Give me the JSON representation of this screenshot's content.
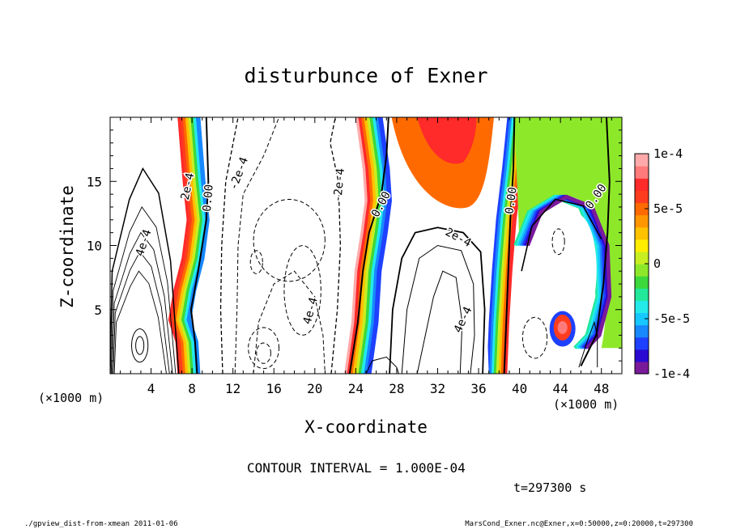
{
  "chart_data": {
    "type": "heatmap",
    "title": "disturbunce of Exner",
    "xlabel": "X-coordinate",
    "ylabel": "Z-coordinate",
    "x_unit_left": "(×1000 m)",
    "x_unit_right": "(×1000 m)",
    "xlim": [
      0,
      50
    ],
    "ylim": [
      0,
      20
    ],
    "x_ticks": [
      4,
      8,
      12,
      16,
      20,
      24,
      28,
      32,
      36,
      40,
      44,
      48
    ],
    "y_ticks": [
      5,
      10,
      15
    ],
    "colorbar": {
      "range": [
        -0.0001,
        0.0001
      ],
      "tick_values": [
        0.0001,
        5e-05,
        0,
        -5e-05,
        -0.0001
      ],
      "tick_labels": [
        "1e-4",
        "5e-5",
        "0",
        "-5e-5",
        "-1e-4"
      ],
      "colors": [
        "#7a1a9a",
        "#2a0ad2",
        "#1e40ff",
        "#1888ff",
        "#16c8ff",
        "#24eaea",
        "#22e89a",
        "#3cd83c",
        "#8ee82a",
        "#c8ee22",
        "#ffee00",
        "#ffc200",
        "#ff9600",
        "#ff6a00",
        "#ff3c1e",
        "#ff2a2a",
        "#ff7a7a",
        "#ffaaaa"
      ]
    },
    "contour_interval": "CONTOUR INTERVAL = 1.000E-04",
    "contour_labels": [
      {
        "text": "2e-4",
        "x": 7.6,
        "z": 14.6,
        "angle": 78
      },
      {
        "text": "0.00",
        "x": 9.6,
        "z": 13.7,
        "angle": 85
      },
      {
        "text": "-2e-4",
        "x": 12.6,
        "z": 15.6,
        "angle": 70
      },
      {
        "text": "4e-4",
        "x": 3.3,
        "z": 10.2,
        "angle": 72
      },
      {
        "text": "-2e-4",
        "x": 22.4,
        "z": 14.7,
        "angle": 85
      },
      {
        "text": "0.00",
        "x": 26.5,
        "z": 13.2,
        "angle": 62
      },
      {
        "text": "4e-4",
        "x": 19.6,
        "z": 4.9,
        "angle": 75
      },
      {
        "text": "2e-4",
        "x": 34.0,
        "z": 10.6,
        "angle": -28
      },
      {
        "text": "4e-4",
        "x": 34.5,
        "z": 4.2,
        "angle": 65
      },
      {
        "text": "0.00",
        "x": 39.2,
        "z": 13.5,
        "angle": 82
      },
      {
        "text": "0.00",
        "x": 47.5,
        "z": 13.8,
        "angle": 55
      }
    ],
    "time_label": "t=297300 s"
  },
  "footer": {
    "left": "./gpview_dist-from-xmean  2011-01-06",
    "right": "MarsCond_Exner.nc@Exner,x=0:50000,z=0:20000,t=297300"
  }
}
